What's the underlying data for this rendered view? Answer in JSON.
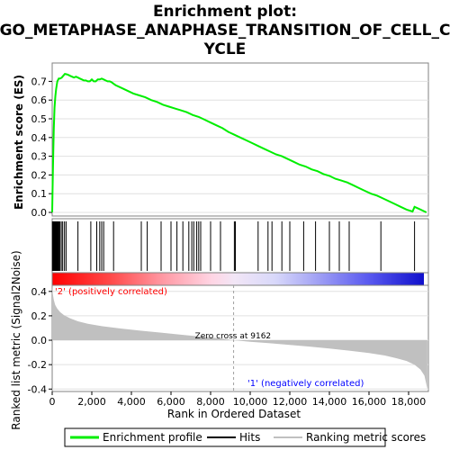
{
  "chart_data": {
    "type": "line",
    "title_line1": "Enrichment plot:",
    "title_line2": "GO_METAPHASE_ANAPHASE_TRANSITION_OF_CELL_C",
    "title_line3": "YCLE",
    "xlabel": "Rank in Ordered Dataset",
    "ylabel_top": "Enrichment score (ES)",
    "ylabel_bottom": "Ranked list metric (Signal2Noise)",
    "xlim": [
      0,
      19000
    ],
    "x_ticks": [
      0,
      2000,
      4000,
      6000,
      8000,
      10000,
      12000,
      14000,
      16000,
      18000
    ],
    "x_tick_labels": [
      "0",
      "2,000",
      "4,000",
      "6,000",
      "8,000",
      "10,000",
      "12,000",
      "14,000",
      "16,000",
      "18,000"
    ],
    "es_ylim": [
      0,
      0.75
    ],
    "es_ticks": [
      0.0,
      0.1,
      0.2,
      0.3,
      0.4,
      0.5,
      0.6,
      0.7
    ],
    "es_tick_labels": [
      "0.0",
      "0.1",
      "0.2",
      "0.3",
      "0.4",
      "0.5",
      "0.6",
      "0.7"
    ],
    "metric_ylim": [
      -0.42,
      0.45
    ],
    "metric_ticks": [
      -0.4,
      -0.2,
      0.0,
      0.2,
      0.4
    ],
    "metric_tick_labels": [
      "-0.4",
      "-0.2",
      "0.0",
      "0.2",
      "0.4"
    ],
    "es_curve": {
      "x": [
        0,
        20,
        50,
        80,
        120,
        160,
        200,
        260,
        330,
        400,
        480,
        560,
        640,
        720,
        800,
        900,
        1000,
        1100,
        1200,
        1300,
        1400,
        1500,
        1600,
        1700,
        1800,
        1900,
        2000,
        2100,
        2200,
        2300,
        2400,
        2500,
        2600,
        2700,
        2800,
        2900,
        3000,
        3200,
        3500,
        3800,
        4100,
        4400,
        4700,
        5000,
        5300,
        5600,
        5900,
        6200,
        6500,
        6800,
        7100,
        7400,
        7700,
        8000,
        8300,
        8600,
        8900,
        9200,
        9500,
        9800,
        10100,
        10400,
        10700,
        11000,
        11300,
        11600,
        11900,
        12200,
        12500,
        12800,
        13100,
        13400,
        13700,
        14000,
        14300,
        14600,
        14900,
        15200,
        15500,
        15800,
        16100,
        16400,
        16700,
        17000,
        17300,
        17600,
        17900,
        18200,
        18300,
        18500,
        18700,
        18900
      ],
      "y": [
        0.0,
        0.12,
        0.3,
        0.45,
        0.56,
        0.62,
        0.66,
        0.7,
        0.715,
        0.715,
        0.72,
        0.73,
        0.74,
        0.738,
        0.735,
        0.73,
        0.725,
        0.72,
        0.725,
        0.72,
        0.715,
        0.71,
        0.705,
        0.705,
        0.7,
        0.7,
        0.71,
        0.7,
        0.7,
        0.71,
        0.71,
        0.715,
        0.71,
        0.705,
        0.7,
        0.7,
        0.695,
        0.68,
        0.665,
        0.65,
        0.635,
        0.625,
        0.615,
        0.6,
        0.59,
        0.575,
        0.565,
        0.555,
        0.545,
        0.535,
        0.52,
        0.51,
        0.495,
        0.48,
        0.465,
        0.45,
        0.43,
        0.415,
        0.4,
        0.385,
        0.37,
        0.355,
        0.34,
        0.325,
        0.31,
        0.3,
        0.285,
        0.27,
        0.255,
        0.245,
        0.23,
        0.22,
        0.205,
        0.195,
        0.18,
        0.17,
        0.16,
        0.145,
        0.13,
        0.115,
        0.1,
        0.09,
        0.075,
        0.06,
        0.045,
        0.03,
        0.015,
        0.005,
        0.03,
        0.02,
        0.01,
        0.0
      ]
    },
    "hits": [
      10,
      30,
      50,
      70,
      90,
      110,
      130,
      150,
      170,
      190,
      210,
      240,
      270,
      300,
      340,
      390,
      460,
      530,
      620,
      700,
      1300,
      1950,
      2250,
      2400,
      2500,
      2600,
      3100,
      4500,
      4800,
      5500,
      6000,
      6300,
      6600,
      6900,
      7050,
      7150,
      7300,
      7400,
      7500,
      8000,
      8500,
      9200,
      9250,
      10400,
      10900,
      11100,
      11600,
      12000,
      12700,
      13300,
      14000,
      14500,
      15000,
      16600,
      18300
    ],
    "metric_curve": {
      "x": [
        0,
        30,
        80,
        150,
        250,
        400,
        600,
        900,
        1300,
        1800,
        2500,
        3500,
        4500,
        5500,
        6500,
        7500,
        8500,
        9162,
        10000,
        11000,
        12000,
        13000,
        14000,
        15000,
        16000,
        16800,
        17400,
        17900,
        18300,
        18600,
        18800,
        18950
      ],
      "y": [
        0.45,
        0.38,
        0.33,
        0.29,
        0.26,
        0.23,
        0.205,
        0.18,
        0.155,
        0.135,
        0.115,
        0.095,
        0.078,
        0.062,
        0.045,
        0.03,
        0.015,
        0.0,
        -0.012,
        -0.025,
        -0.038,
        -0.052,
        -0.068,
        -0.085,
        -0.105,
        -0.125,
        -0.148,
        -0.17,
        -0.2,
        -0.24,
        -0.29,
        -0.4
      ]
    },
    "annotations": {
      "positive": "'2' (positively correlated)",
      "negative": "'1' (negatively correlated)",
      "zero_cross": "Zero cross at 9162",
      "zero_cross_x": 9162
    },
    "legend": {
      "placement": "bottom",
      "items": [
        {
          "label": "Enrichment profile",
          "color": "#00ee00"
        },
        {
          "label": "Hits",
          "color": "#000000"
        },
        {
          "label": "Ranking metric scores",
          "color": "#c0c0c0"
        }
      ]
    },
    "colors": {
      "es_line": "#00ee00",
      "metric_fill": "#c0c0c0",
      "positive_label": "#ff0000",
      "negative_label": "#0000ff",
      "frame": "#808080"
    }
  }
}
